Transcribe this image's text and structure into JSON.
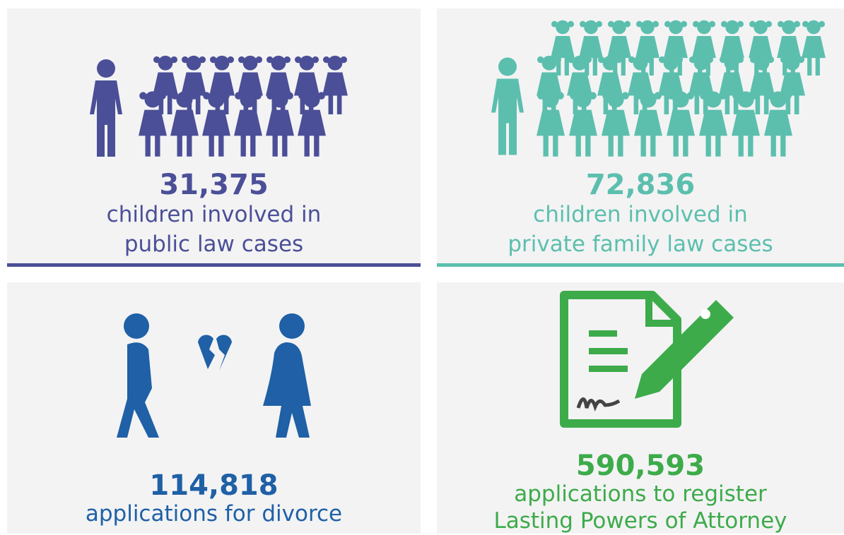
{
  "panels": [
    {
      "number": "31,375",
      "lines": [
        "children involved in",
        "public law cases"
      ]
    },
    {
      "number": "72,836",
      "lines": [
        "children involved in",
        "private family law cases"
      ]
    },
    {
      "number": "114,818",
      "lines": [
        "applications for divorce"
      ]
    },
    {
      "number": "590,593",
      "lines": [
        "applications to register",
        "Lasting Powers of Attorney"
      ]
    }
  ]
}
